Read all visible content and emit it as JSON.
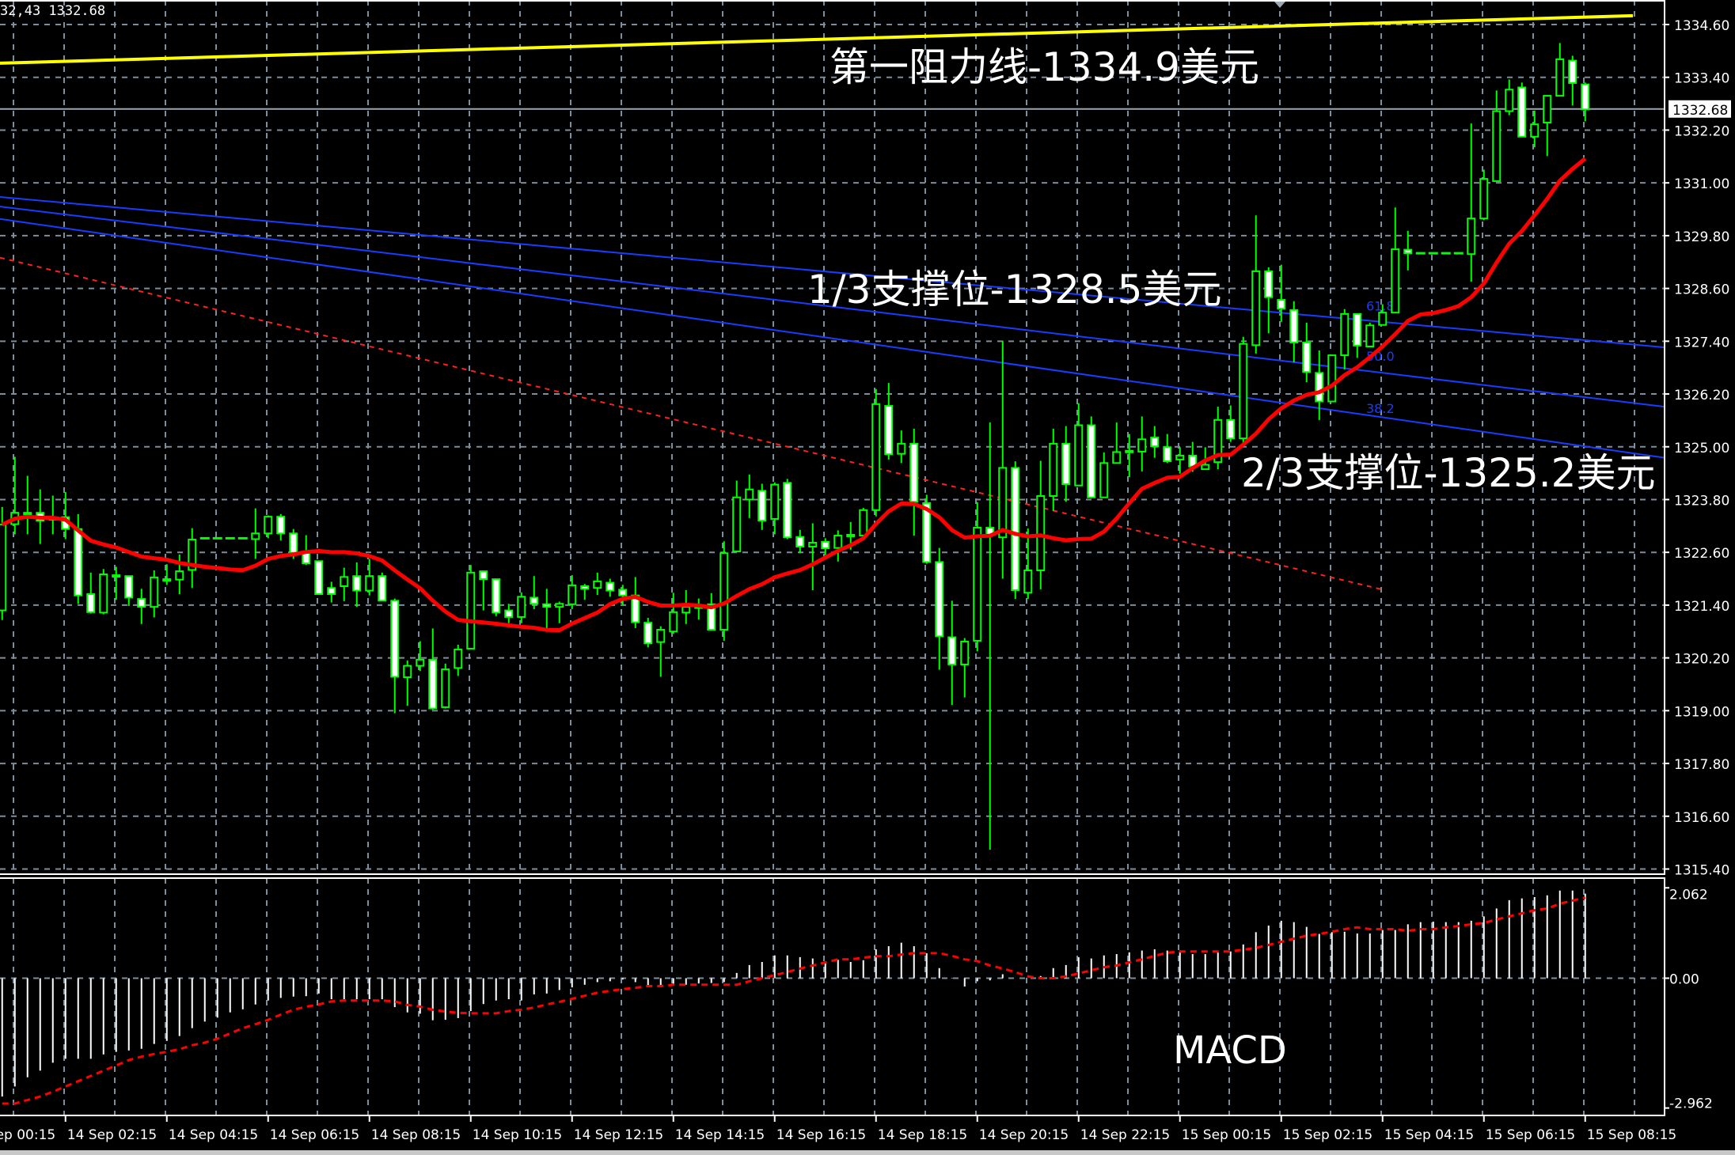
{
  "info_text": "32,43 1332.68",
  "annotations": {
    "resistance_1": "第一阻力线-1334.9美元",
    "support_1_3": "1/3支撑位-1328.5美元",
    "support_2_3": "2/3支撑位-1325.2美元",
    "macd_label": "MACD"
  },
  "colors": {
    "background": "#000000",
    "grid": "#7f8c99",
    "candle": "#00ff00",
    "bear_fill": "#ffffff",
    "bull_fill": "#000000",
    "moving_average": "#ff0000",
    "resistance_line": "#ffff00",
    "fib_lines": "#1a3cff",
    "trend_dashed": "#ff2020",
    "histogram": "#ffffff",
    "signal": "#ff0000",
    "axis_text": "#ffffff"
  },
  "chart_data": [
    {
      "type": "candlestick",
      "title": "",
      "price_axis": {
        "ylim": [
          1315.4,
          1334.6
        ],
        "ticks": [
          "1334.60",
          "1333.40",
          "1332.20",
          "1331.00",
          "1329.80",
          "1328.60",
          "1327.40",
          "1326.20",
          "1325.00",
          "1323.80",
          "1322.60",
          "1321.40",
          "1320.20",
          "1319.00",
          "1317.80",
          "1316.60",
          "1315.40"
        ],
        "current_price": "1332.68"
      },
      "time_axis": {
        "interval": "15 min",
        "ticks": [
          "14 Sep 00:15",
          "14 Sep 02:15",
          "14 Sep 04:15",
          "14 Sep 06:15",
          "14 Sep 08:15",
          "14 Sep 10:15",
          "14 Sep 12:15",
          "14 Sep 14:15",
          "14 Sep 16:15",
          "14 Sep 18:15",
          "14 Sep 20:15",
          "14 Sep 22:15",
          "15 Sep 00:15",
          "15 Sep 02:15",
          "15 Sep 04:15",
          "15 Sep 06:15",
          "15 Sep 08:15"
        ]
      },
      "grid": true,
      "ohlc": [
        [
          1321.28,
          1323.63,
          1321.06,
          1323.23
        ],
        [
          1323.24,
          1324.77,
          1323.01,
          1323.5
        ],
        [
          1323.5,
          1324.34,
          1323.01,
          1323.5
        ],
        [
          1323.5,
          1324.03,
          1322.79,
          1323.32
        ],
        [
          1323.38,
          1323.89,
          1323.01,
          1323.38
        ],
        [
          1323.4,
          1323.97,
          1322.9,
          1323.13
        ],
        [
          1323.13,
          1323.47,
          1321.43,
          1321.62
        ],
        [
          1321.65,
          1322.14,
          1321.21,
          1321.24
        ],
        [
          1321.23,
          1322.22,
          1321.19,
          1322.1
        ],
        [
          1322.08,
          1322.27,
          1321.52,
          1322.08
        ],
        [
          1322.06,
          1322.06,
          1321.38,
          1321.57
        ],
        [
          1321.54,
          1321.77,
          1320.97,
          1321.36
        ],
        [
          1321.36,
          1322.19,
          1321.12,
          1322.03
        ],
        [
          1321.99,
          1322.33,
          1321.86,
          1321.99
        ],
        [
          1321.98,
          1322.55,
          1321.65,
          1322.17
        ],
        [
          1322.2,
          1323.15,
          1321.79,
          1322.89
        ],
        [
          1322.92,
          1322.92,
          1322.92,
          1322.92
        ],
        [
          1322.92,
          1322.92,
          1322.92,
          1322.92
        ],
        [
          1322.92,
          1322.92,
          1322.92,
          1322.92
        ],
        [
          1322.92,
          1322.92,
          1322.92,
          1322.92
        ],
        [
          1322.9,
          1323.6,
          1322.45,
          1323.03
        ],
        [
          1323.03,
          1323.44,
          1322.92,
          1323.41
        ],
        [
          1323.41,
          1323.47,
          1322.87,
          1323.03
        ],
        [
          1323.03,
          1323.13,
          1322.45,
          1322.59
        ],
        [
          1322.59,
          1322.99,
          1322.31,
          1322.35
        ],
        [
          1322.4,
          1322.4,
          1321.65,
          1321.65
        ],
        [
          1321.79,
          1321.93,
          1321.46,
          1321.65
        ],
        [
          1321.83,
          1322.25,
          1321.49,
          1322.04
        ],
        [
          1322.06,
          1322.37,
          1321.36,
          1321.73
        ],
        [
          1321.73,
          1322.45,
          1321.62,
          1322.06
        ],
        [
          1322.06,
          1322.14,
          1321.5,
          1321.5
        ],
        [
          1321.5,
          1321.55,
          1318.94,
          1319.77
        ],
        [
          1319.76,
          1320.14,
          1319.11,
          1320.02
        ],
        [
          1320.02,
          1320.58,
          1319.9,
          1320.16
        ],
        [
          1320.16,
          1320.87,
          1319.02,
          1319.05
        ],
        [
          1319.08,
          1320.07,
          1319.05,
          1319.94
        ],
        [
          1319.97,
          1320.5,
          1319.79,
          1320.39
        ],
        [
          1320.41,
          1322.31,
          1320.41,
          1322.14
        ],
        [
          1322.17,
          1322.17,
          1321.28,
          1321.99
        ],
        [
          1321.99,
          1321.99,
          1321.15,
          1321.23
        ],
        [
          1321.28,
          1321.43,
          1320.99,
          1321.13
        ],
        [
          1321.13,
          1321.69,
          1320.99,
          1321.59
        ],
        [
          1321.57,
          1322.06,
          1321.31,
          1321.43
        ],
        [
          1321.42,
          1321.77,
          1320.87,
          1321.36
        ],
        [
          1321.36,
          1321.48,
          1320.99,
          1321.43
        ],
        [
          1321.42,
          1322.08,
          1321.31,
          1321.85
        ],
        [
          1321.83,
          1321.88,
          1321.52,
          1321.77
        ],
        [
          1321.79,
          1322.14,
          1321.63,
          1321.94
        ],
        [
          1321.91,
          1322.0,
          1321.59,
          1321.73
        ],
        [
          1321.75,
          1321.86,
          1321.4,
          1321.62
        ],
        [
          1321.62,
          1322.04,
          1320.88,
          1321.01
        ],
        [
          1321.0,
          1321.11,
          1320.44,
          1320.53
        ],
        [
          1320.56,
          1320.92,
          1319.77,
          1320.84
        ],
        [
          1320.8,
          1321.68,
          1320.75,
          1321.24
        ],
        [
          1321.23,
          1321.74,
          1320.97,
          1321.36
        ],
        [
          1321.37,
          1321.55,
          1321.07,
          1321.37
        ],
        [
          1321.42,
          1321.67,
          1320.84,
          1320.84
        ],
        [
          1320.84,
          1322.85,
          1320.59,
          1322.58
        ],
        [
          1322.62,
          1324.23,
          1322.62,
          1323.85
        ],
        [
          1323.8,
          1324.37,
          1323.38,
          1324.03
        ],
        [
          1324.0,
          1324.16,
          1323.11,
          1323.32
        ],
        [
          1323.36,
          1324.19,
          1323.01,
          1324.14
        ],
        [
          1324.18,
          1324.27,
          1322.9,
          1322.94
        ],
        [
          1322.95,
          1323.11,
          1322.58,
          1322.73
        ],
        [
          1322.73,
          1323.26,
          1321.74,
          1322.82
        ],
        [
          1322.84,
          1322.92,
          1322.54,
          1322.69
        ],
        [
          1322.7,
          1323.1,
          1322.39,
          1322.98
        ],
        [
          1323.0,
          1323.29,
          1322.66,
          1323.0
        ],
        [
          1322.98,
          1323.61,
          1322.98,
          1323.56
        ],
        [
          1323.56,
          1326.31,
          1323.42,
          1325.97
        ],
        [
          1325.93,
          1326.45,
          1324.71,
          1324.83
        ],
        [
          1324.84,
          1325.37,
          1324.63,
          1325.07
        ],
        [
          1325.07,
          1325.41,
          1322.98,
          1323.75
        ],
        [
          1323.72,
          1323.91,
          1322.34,
          1322.38
        ],
        [
          1322.38,
          1322.7,
          1319.93,
          1320.69
        ],
        [
          1320.67,
          1321.5,
          1319.13,
          1320.05
        ],
        [
          1320.05,
          1320.65,
          1319.3,
          1320.57
        ],
        [
          1320.59,
          1323.74,
          1320.35,
          1323.16
        ],
        [
          1323.16,
          1325.55,
          1315.84,
          1323.0
        ],
        [
          1322.94,
          1327.41,
          1322.0,
          1324.52
        ],
        [
          1324.52,
          1324.67,
          1321.54,
          1321.74
        ],
        [
          1321.68,
          1323.14,
          1321.54,
          1322.19
        ],
        [
          1322.19,
          1324.68,
          1321.76,
          1323.88
        ],
        [
          1323.88,
          1325.41,
          1323.54,
          1325.07
        ],
        [
          1325.07,
          1325.47,
          1323.75,
          1324.15
        ],
        [
          1324.12,
          1325.99,
          1324.12,
          1325.49
        ],
        [
          1325.49,
          1325.69,
          1323.83,
          1323.85
        ],
        [
          1323.85,
          1324.87,
          1323.85,
          1324.63
        ],
        [
          1324.63,
          1325.55,
          1324.63,
          1324.88
        ],
        [
          1324.91,
          1325.29,
          1324.31,
          1324.91
        ],
        [
          1324.89,
          1325.69,
          1324.44,
          1325.17
        ],
        [
          1325.21,
          1325.47,
          1324.75,
          1325.01
        ],
        [
          1324.99,
          1325.29,
          1324.63,
          1324.67
        ],
        [
          1324.71,
          1324.99,
          1324.39,
          1324.8
        ],
        [
          1324.8,
          1325.11,
          1324.43,
          1324.55
        ],
        [
          1324.49,
          1324.99,
          1324.49,
          1324.59
        ],
        [
          1324.65,
          1325.91,
          1324.49,
          1325.61
        ],
        [
          1325.61,
          1325.94,
          1325.11,
          1325.19
        ],
        [
          1325.19,
          1327.5,
          1325.0,
          1327.34
        ],
        [
          1327.31,
          1330.26,
          1327.12,
          1328.99
        ],
        [
          1328.99,
          1329.08,
          1327.58,
          1328.4
        ],
        [
          1328.34,
          1329.14,
          1327.84,
          1328.14
        ],
        [
          1328.11,
          1328.31,
          1326.92,
          1327.37
        ],
        [
          1327.37,
          1327.82,
          1326.47,
          1326.7
        ],
        [
          1326.68,
          1327.19,
          1325.61,
          1326.03
        ],
        [
          1326.03,
          1327.08,
          1326.03,
          1327.08
        ],
        [
          1327.08,
          1328.13,
          1326.76,
          1328.02
        ],
        [
          1328.02,
          1328.02,
          1327.02,
          1327.3
        ],
        [
          1327.28,
          1327.82,
          1327.28,
          1327.76
        ],
        [
          1327.77,
          1328.24,
          1327.76,
          1328.05
        ],
        [
          1328.05,
          1330.44,
          1328.05,
          1329.49
        ],
        [
          1329.48,
          1329.91,
          1329.01,
          1329.4
        ],
        [
          1329.4,
          1329.4,
          1329.4,
          1329.4
        ],
        [
          1329.4,
          1329.4,
          1329.4,
          1329.4
        ],
        [
          1329.4,
          1329.4,
          1329.4,
          1329.4
        ],
        [
          1329.4,
          1329.4,
          1329.4,
          1329.4
        ],
        [
          1329.38,
          1332.35,
          1328.75,
          1330.19
        ],
        [
          1330.19,
          1331.3,
          1330.15,
          1331.09
        ],
        [
          1331.04,
          1333.1,
          1331.04,
          1332.63
        ],
        [
          1332.63,
          1333.35,
          1332.54,
          1333.12
        ],
        [
          1333.17,
          1333.28,
          1332.05,
          1332.05
        ],
        [
          1332.05,
          1332.64,
          1331.81,
          1332.33
        ],
        [
          1332.37,
          1332.98,
          1331.61,
          1332.98
        ],
        [
          1332.98,
          1334.18,
          1332.98,
          1333.81
        ],
        [
          1333.78,
          1333.89,
          1332.76,
          1333.27
        ],
        [
          1333.24,
          1333.28,
          1332.4,
          1332.67
        ]
      ],
      "lines": {
        "resistance": {
          "start_price": 1333.72,
          "end_price": 1334.8
        },
        "fib_upper": {
          "start_price": 1330.68,
          "end_price": 1327.26
        },
        "fib_middle": {
          "start_price": 1330.46,
          "end_price": 1325.91
        },
        "fib_lower": {
          "start_price": 1330.18,
          "end_price": 1324.75
        },
        "trend_dashed": {
          "start_price": 1329.3,
          "end_price": 1321.76
        }
      },
      "fib_labels": [
        {
          "text": "61.8",
          "price": 1328.21
        },
        {
          "text": "50.0",
          "price": 1327.06
        },
        {
          "text": "38.2",
          "price": 1325.88
        }
      ]
    },
    {
      "type": "bar",
      "indicator": "MACD",
      "ylim": [
        -2.962,
        2.062
      ],
      "ticks": [
        "2.062",
        "0.00",
        "-2.962"
      ],
      "histogram": [
        -2.7,
        -2.47,
        -2.26,
        -2.11,
        -1.93,
        -1.84,
        -1.84,
        -1.84,
        -1.74,
        -1.68,
        -1.65,
        -1.61,
        -1.5,
        -1.43,
        -1.32,
        -1.14,
        -0.99,
        -0.9,
        -0.78,
        -0.71,
        -0.6,
        -0.51,
        -0.45,
        -0.42,
        -0.41,
        -0.35,
        -0.48,
        -0.48,
        -0.48,
        -0.48,
        -0.48,
        -0.66,
        -0.78,
        -0.81,
        -0.96,
        -0.95,
        -0.91,
        -0.75,
        -0.59,
        -0.51,
        -0.48,
        -0.51,
        -0.37,
        -0.35,
        -0.27,
        -0.21,
        -0.15,
        -0.09,
        -0.07,
        -0.03,
        -0.09,
        -0.17,
        -0.18,
        -0.15,
        -0.15,
        -0.12,
        -0.11,
        -0.09,
        0.12,
        0.3,
        0.37,
        0.52,
        0.52,
        0.48,
        0.45,
        0.37,
        0.42,
        0.37,
        0.41,
        0.66,
        0.73,
        0.81,
        0.73,
        0.57,
        0.23,
        0.01,
        -0.19,
        -0.07,
        -0.05,
        0.09,
        0,
        0,
        0.05,
        0.23,
        0.3,
        0.48,
        0.45,
        0.52,
        0.55,
        0.59,
        0.63,
        0.66,
        0.63,
        0.61,
        0.55,
        0.55,
        0.59,
        0.61,
        0.77,
        1.05,
        1.2,
        1.31,
        1.28,
        1.17,
        1.01,
        1.05,
        1.06,
        1.02,
        1.02,
        1.1,
        1.1,
        1.23,
        1.28,
        1.29,
        1.28,
        1.28,
        1.31,
        1.41,
        1.59,
        1.78,
        1.82,
        1.85,
        1.89,
        2.0,
        2.0,
        1.93
      ],
      "signal": [
        -2.86,
        -2.86,
        -2.78,
        -2.7,
        -2.59,
        -2.47,
        -2.35,
        -2.23,
        -2.11,
        -1.99,
        -1.87,
        -1.79,
        -1.73,
        -1.68,
        -1.62,
        -1.53,
        -1.47,
        -1.38,
        -1.26,
        -1.14,
        -1.05,
        -0.95,
        -0.83,
        -0.72,
        -0.65,
        -0.6,
        -0.53,
        -0.51,
        -0.51,
        -0.51,
        -0.51,
        -0.53,
        -0.61,
        -0.65,
        -0.72,
        -0.76,
        -0.79,
        -0.8,
        -0.8,
        -0.8,
        -0.75,
        -0.72,
        -0.67,
        -0.6,
        -0.54,
        -0.47,
        -0.4,
        -0.33,
        -0.29,
        -0.25,
        -0.22,
        -0.18,
        -0.18,
        -0.15,
        -0.15,
        -0.15,
        -0.15,
        -0.15,
        -0.15,
        -0.07,
        0,
        0.07,
        0.14,
        0.22,
        0.29,
        0.36,
        0.43,
        0.43,
        0.47,
        0.5,
        0.5,
        0.54,
        0.57,
        0.57,
        0.57,
        0.51,
        0.43,
        0.39,
        0.29,
        0.22,
        0.14,
        0.04,
        0,
        0,
        0.04,
        0.11,
        0.18,
        0.25,
        0.29,
        0.36,
        0.43,
        0.51,
        0.58,
        0.61,
        0.61,
        0.61,
        0.61,
        0.61,
        0.65,
        0.69,
        0.76,
        0.83,
        0.9,
        0.97,
        1.01,
        1.06,
        1.12,
        1.16,
        1.12,
        1.12,
        1.12,
        1.08,
        1.12,
        1.12,
        1.16,
        1.19,
        1.23,
        1.26,
        1.34,
        1.41,
        1.48,
        1.55,
        1.59,
        1.7,
        1.77,
        1.84
      ]
    }
  ]
}
